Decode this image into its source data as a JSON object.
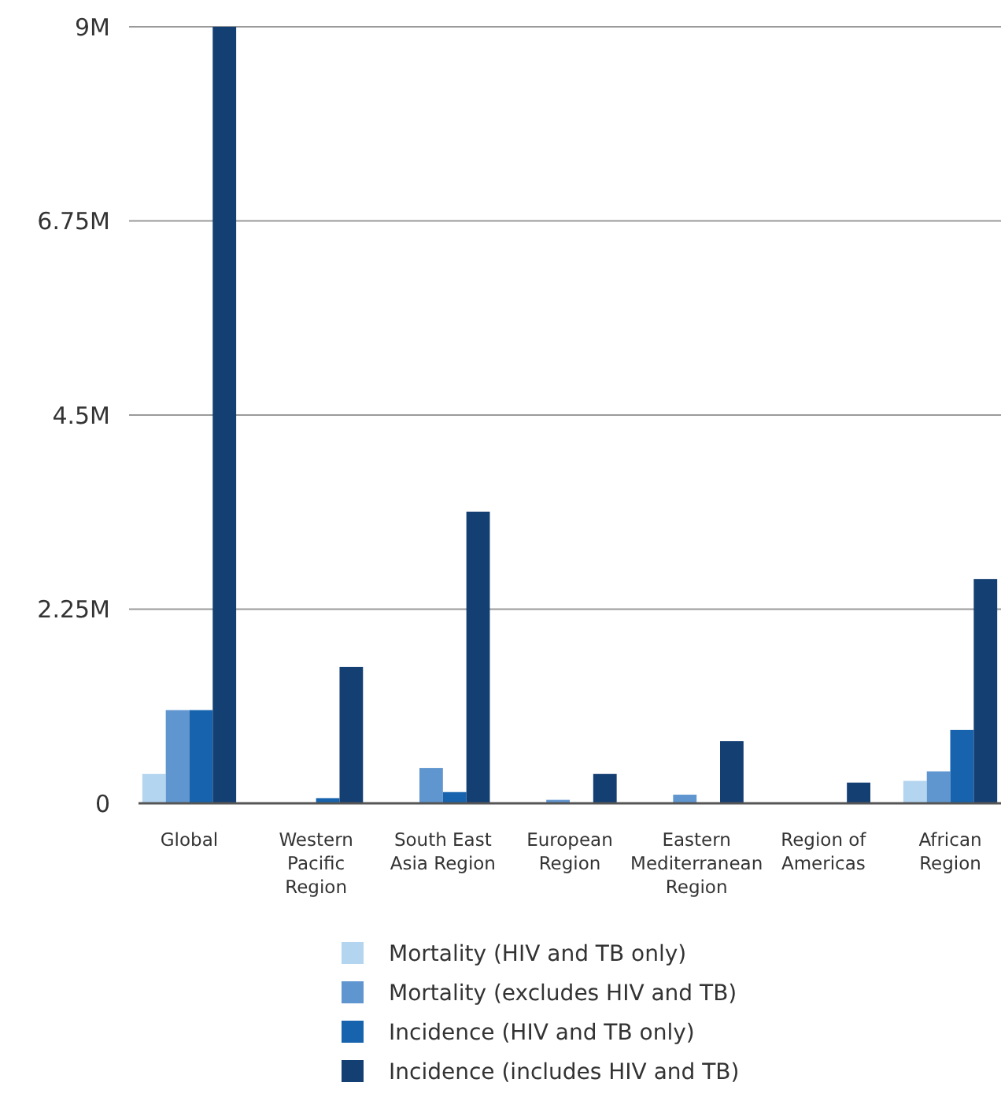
{
  "chart_data": {
    "type": "bar",
    "categories": [
      "Global",
      "Western Pacific Region",
      "South East Asia Region",
      "European Region",
      "Eastern Mediterranean Region",
      "Region of Americas",
      "African Region"
    ],
    "series": [
      {
        "name": "Mortality (HIV and TB only)",
        "color": "#b3d5f0",
        "values": [
          0.34,
          0,
          0,
          0,
          0,
          0,
          0.26
        ]
      },
      {
        "name": "Mortality (excludes HIV and TB)",
        "color": "#6096cf",
        "values": [
          1.08,
          0,
          0.41,
          0.04,
          0.1,
          0,
          0.37
        ]
      },
      {
        "name": "Incidence (HIV and TB only)",
        "color": "#1763ae",
        "values": [
          1.08,
          0.06,
          0.13,
          0,
          0,
          0,
          0.85
        ]
      },
      {
        "name": "Incidence (includes HIV and TB)",
        "color": "#143f73",
        "values": [
          9.0,
          1.58,
          3.38,
          0.34,
          0.72,
          0.24,
          2.6
        ]
      }
    ],
    "ylim": [
      0,
      9
    ],
    "yticks": [
      {
        "value": 0,
        "label": "0"
      },
      {
        "value": 2.25,
        "label": "2.25M"
      },
      {
        "value": 4.5,
        "label": "4.5M"
      },
      {
        "value": 6.75,
        "label": "6.75M"
      },
      {
        "value": 9,
        "label": "9M"
      }
    ],
    "grid": "y",
    "legend": "bottom"
  }
}
